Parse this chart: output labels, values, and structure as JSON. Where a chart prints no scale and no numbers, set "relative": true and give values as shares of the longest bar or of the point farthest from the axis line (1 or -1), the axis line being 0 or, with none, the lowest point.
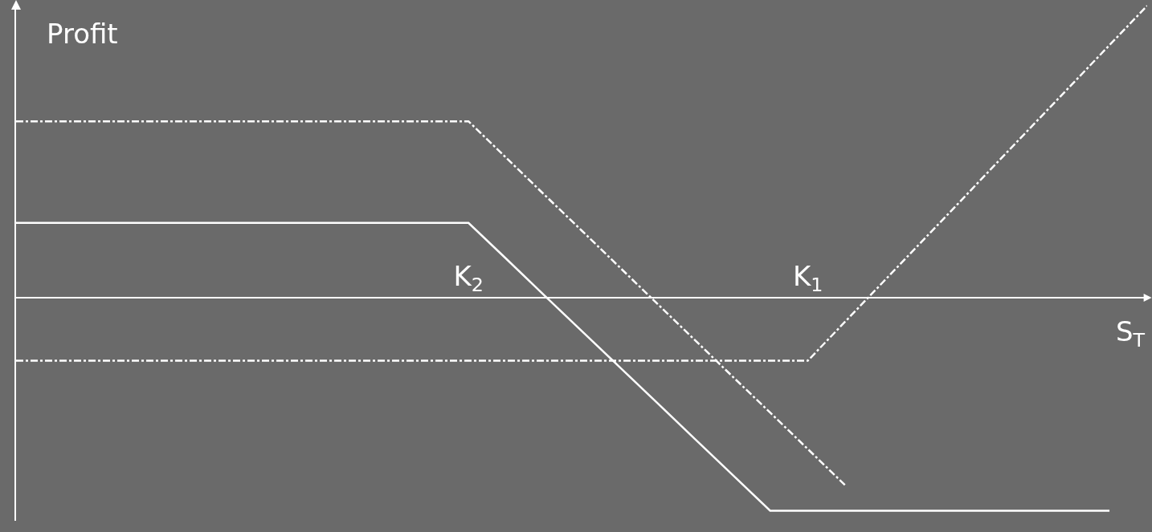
{
  "chart_data": {
    "type": "line",
    "relative": true,
    "ylabel": "Profit",
    "xlabel": "S$_{T}$",
    "categories": [
      null,
      null,
      null,
      null,
      null,
      null,
      null,
      null,
      null,
      null,
      null,
      null,
      "K$_{2}$",
      null,
      null,
      null,
      null,
      null,
      null,
      null,
      null,
      "K$_{1}$",
      null,
      null,
      null,
      null,
      null,
      null,
      null,
      null,
      null
    ],
    "series": [
      {
        "color": "#ffffff",
        "line_style": "solid",
        "values": [
          0.256,
          0.256,
          0.256,
          0.256,
          0.256,
          0.256,
          0.256,
          0.256,
          0.256,
          0.256,
          0.256,
          0.256,
          0.256,
          0.133,
          0.009,
          -0.114,
          -0.237,
          -0.36,
          -0.484,
          -0.607,
          -0.73,
          -0.73,
          -0.73,
          -0.73,
          -0.73,
          -0.73,
          -0.73,
          -0.73,
          -0.73,
          -0.73,
          null
        ]
      },
      {
        "color": "#ffffff",
        "line_style": "dashdot",
        "values": [
          0.604,
          0.604,
          0.604,
          0.604,
          0.604,
          0.604,
          0.604,
          0.604,
          0.604,
          0.604,
          0.604,
          0.604,
          0.604,
          0.479,
          0.354,
          0.23,
          0.105,
          -0.02,
          -0.145,
          -0.27,
          -0.394,
          -0.519,
          -0.644,
          null,
          null,
          null,
          null,
          null,
          null,
          null,
          null
        ]
      },
      {
        "color": "#ffffff",
        "line_style": "dashdot",
        "values": [
          -0.216,
          -0.216,
          -0.216,
          -0.216,
          -0.216,
          -0.216,
          -0.216,
          -0.216,
          -0.216,
          -0.216,
          -0.216,
          -0.216,
          -0.216,
          -0.216,
          -0.216,
          -0.216,
          -0.216,
          -0.216,
          -0.216,
          -0.216,
          -0.216,
          -0.216,
          -0.081,
          0.054,
          0.189,
          0.324,
          0.46,
          0.595,
          0.73,
          0.865,
          1
        ]
      }
    ],
    "marker": "none"
  }
}
